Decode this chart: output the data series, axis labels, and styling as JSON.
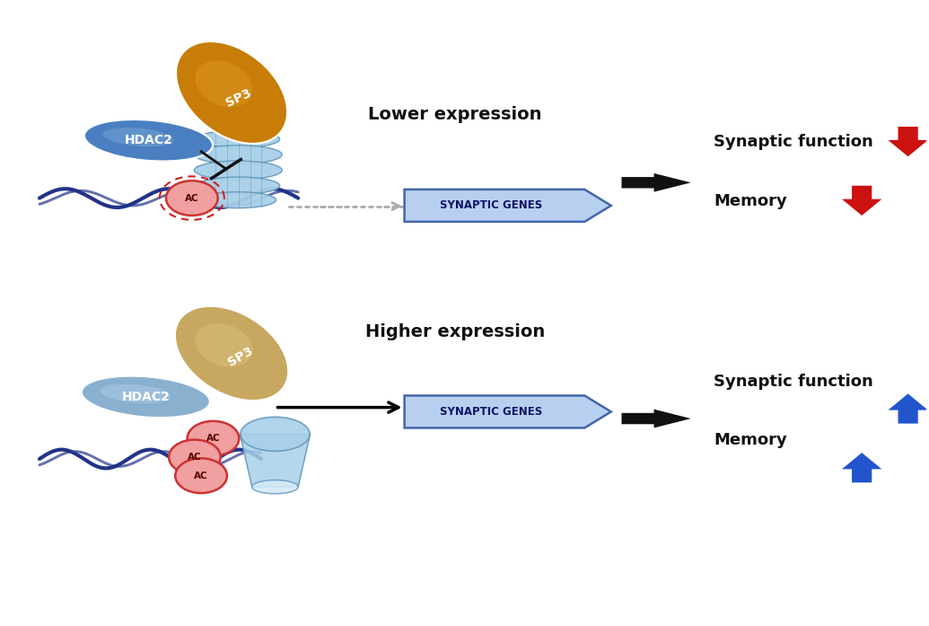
{
  "bg_color": "#ffffff",
  "text_color": "#111111",
  "hdac2_color_top": "#4a7fc1",
  "hdac2_color_bottom": "#8ab0d0",
  "sp3_color_top": "#c87d08",
  "sp3_color_bottom": "#c8a860",
  "histone_color": "#a8d0e8",
  "histone_edge": "#6699bb",
  "ac_fill": "#f0a0a0",
  "ac_edge": "#cc3333",
  "ac_text": "#550000",
  "synaptic_box_color": "#b8d0f0",
  "synaptic_box_edge": "#4466aa",
  "dna_color": "#223388",
  "red_down": "#cc1111",
  "blue_up": "#2255cc",
  "inhibit_color": "#111111",
  "dashed_circle_color": "#cc2222",
  "big_arrow_color": "#111111",
  "dashed_arrow_color": "#aaaaaa",
  "panel1_title": "Lower expression",
  "panel2_title": "Higher expression",
  "synaptic_label": "SYNAPTIC GENES",
  "synaptic_func_label": "Synaptic function",
  "memory_label": "Memory"
}
